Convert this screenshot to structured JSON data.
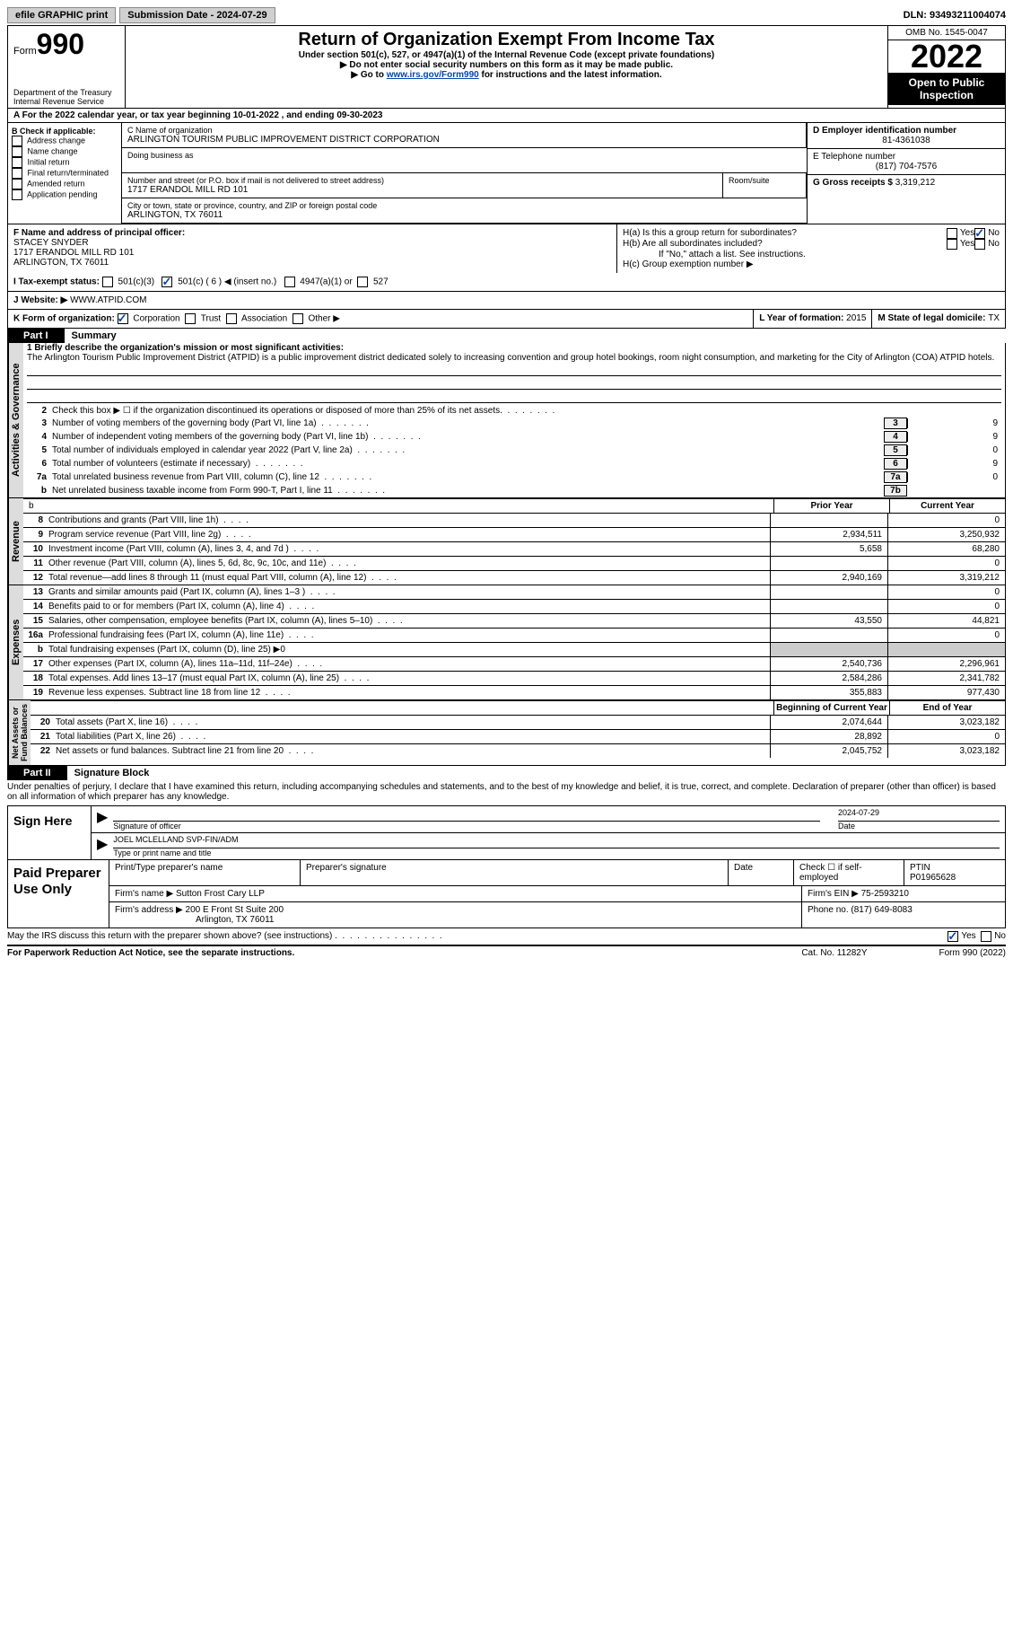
{
  "top": {
    "efile": "efile GRAPHIC print",
    "sub_label": "Submission Date - 2024-07-29",
    "dln": "DLN: 93493211004074"
  },
  "header": {
    "form_word": "Form",
    "form_num": "990",
    "dept": "Department of the Treasury\nInternal Revenue Service",
    "title": "Return of Organization Exempt From Income Tax",
    "sub": "Under section 501(c), 527, or 4947(a)(1) of the Internal Revenue Code (except private foundations)",
    "note1": "▶ Do not enter social security numbers on this form as it may be made public.",
    "note2_pre": "▶ Go to ",
    "note2_link": "www.irs.gov/Form990",
    "note2_post": " for instructions and the latest information.",
    "omb": "OMB No. 1545-0047",
    "year": "2022",
    "open": "Open to Public Inspection"
  },
  "row_a": "A   For the 2022 calendar year, or tax year beginning 10-01-2022     , and ending 09-30-2023",
  "box_b": {
    "head": "B Check if applicable:",
    "items": [
      "Address change",
      "Name change",
      "Initial return",
      "Final return/terminated",
      "Amended return",
      "Application pending"
    ]
  },
  "box_c": {
    "label": "C Name of organization",
    "name": "ARLINGTON TOURISM PUBLIC IMPROVEMENT DISTRICT CORPORATION",
    "dba_label": "Doing business as",
    "addr_label": "Number and street (or P.O. box if mail is not delivered to street address)",
    "room_label": "Room/suite",
    "addr": "1717 ERANDOL MILL RD 101",
    "city_label": "City or town, state or province, country, and ZIP or foreign postal code",
    "city": "ARLINGTON, TX  76011"
  },
  "box_d": {
    "label": "D Employer identification number",
    "val": "81-4361038"
  },
  "box_e": {
    "label": "E Telephone number",
    "val": "(817) 704-7576"
  },
  "box_g": {
    "label": "G Gross receipts $",
    "val": "3,319,212"
  },
  "box_f": {
    "label": "F  Name and address of principal officer:",
    "name": "STACEY SNYDER",
    "addr1": "1717 ERANDOL MILL RD 101",
    "addr2": "ARLINGTON, TX  76011"
  },
  "box_h": {
    "a": "H(a)  Is this a group return for subordinates?",
    "b": "H(b)  Are all subordinates included?",
    "note": "If \"No,\" attach a list. See instructions.",
    "c": "H(c)  Group exemption number ▶",
    "yes": "Yes",
    "no": "No"
  },
  "box_i": {
    "label": "I    Tax-exempt status:",
    "c1": "501(c)(3)",
    "c2": "501(c) ( 6 ) ◀ (insert no.)",
    "c3": "4947(a)(1) or",
    "c4": "527"
  },
  "box_j": {
    "label": "J   Website: ▶",
    "val": "WWW.ATPID.COM"
  },
  "box_k": {
    "label": "K Form of organization:",
    "c1": "Corporation",
    "c2": "Trust",
    "c3": "Association",
    "c4": "Other ▶"
  },
  "box_l": {
    "label": "L Year of formation: ",
    "val": "2015"
  },
  "box_m": {
    "label": "M State of legal domicile: ",
    "val": "TX"
  },
  "part1": {
    "num": "Part I",
    "title": "Summary"
  },
  "mission": {
    "lead": "1   Briefly describe the organization's mission or most significant activities:",
    "text": "The Arlington Tourism Public Improvement District (ATPID) is a public improvement district dedicated solely to increasing convention and group hotel bookings, room night consumption, and marketing for the City of Arlington (COA) ATPID hotels."
  },
  "lines_gov": [
    {
      "n": "2",
      "t": "Check this box ▶ ☐  if the organization discontinued its operations or disposed of more than 25% of its net assets."
    },
    {
      "n": "3",
      "t": "Number of voting members of the governing body (Part VI, line 1a)",
      "box": "3",
      "v": "9"
    },
    {
      "n": "4",
      "t": "Number of independent voting members of the governing body (Part VI, line 1b)",
      "box": "4",
      "v": "9"
    },
    {
      "n": "5",
      "t": "Total number of individuals employed in calendar year 2022 (Part V, line 2a)",
      "box": "5",
      "v": "0"
    },
    {
      "n": "6",
      "t": "Total number of volunteers (estimate if necessary)",
      "box": "6",
      "v": "9"
    },
    {
      "n": "7a",
      "t": "Total unrelated business revenue from Part VIII, column (C), line 12",
      "box": "7a",
      "v": "0"
    },
    {
      "n": "b",
      "t": "Net unrelated business taxable income from Form 990-T, Part I, line 11",
      "box": "7b",
      "v": ""
    }
  ],
  "cols": {
    "prior": "Prior Year",
    "current": "Current Year",
    "boy": "Beginning of Current Year",
    "eoy": "End of Year"
  },
  "rev": [
    {
      "n": "8",
      "t": "Contributions and grants (Part VIII, line 1h)",
      "p": "",
      "c": "0"
    },
    {
      "n": "9",
      "t": "Program service revenue (Part VIII, line 2g)",
      "p": "2,934,511",
      "c": "3,250,932"
    },
    {
      "n": "10",
      "t": "Investment income (Part VIII, column (A), lines 3, 4, and 7d )",
      "p": "5,658",
      "c": "68,280"
    },
    {
      "n": "11",
      "t": "Other revenue (Part VIII, column (A), lines 5, 6d, 8c, 9c, 10c, and 11e)",
      "p": "",
      "c": "0"
    },
    {
      "n": "12",
      "t": "Total revenue—add lines 8 through 11 (must equal Part VIII, column (A), line 12)",
      "p": "2,940,169",
      "c": "3,319,212"
    }
  ],
  "exp": [
    {
      "n": "13",
      "t": "Grants and similar amounts paid (Part IX, column (A), lines 1–3 )",
      "p": "",
      "c": "0"
    },
    {
      "n": "14",
      "t": "Benefits paid to or for members (Part IX, column (A), line 4)",
      "p": "",
      "c": "0"
    },
    {
      "n": "15",
      "t": "Salaries, other compensation, employee benefits (Part IX, column (A), lines 5–10)",
      "p": "43,550",
      "c": "44,821"
    },
    {
      "n": "16a",
      "t": "Professional fundraising fees (Part IX, column (A), line 11e)",
      "p": "",
      "c": "0"
    },
    {
      "n": "b",
      "t": "Total fundraising expenses (Part IX, column (D), line 25) ▶0",
      "gray": true
    },
    {
      "n": "17",
      "t": "Other expenses (Part IX, column (A), lines 11a–11d, 11f–24e)",
      "p": "2,540,736",
      "c": "2,296,961"
    },
    {
      "n": "18",
      "t": "Total expenses. Add lines 13–17 (must equal Part IX, column (A), line 25)",
      "p": "2,584,286",
      "c": "2,341,782"
    },
    {
      "n": "19",
      "t": "Revenue less expenses. Subtract line 18 from line 12",
      "p": "355,883",
      "c": "977,430"
    }
  ],
  "na": [
    {
      "n": "20",
      "t": "Total assets (Part X, line 16)",
      "p": "2,074,644",
      "c": "3,023,182"
    },
    {
      "n": "21",
      "t": "Total liabilities (Part X, line 26)",
      "p": "28,892",
      "c": "0"
    },
    {
      "n": "22",
      "t": "Net assets or fund balances. Subtract line 21 from line 20",
      "p": "2,045,752",
      "c": "3,023,182"
    }
  ],
  "vtabs": {
    "gov": "Activities & Governance",
    "rev": "Revenue",
    "exp": "Expenses",
    "na": "Net Assets or\nFund Balances"
  },
  "part2": {
    "num": "Part II",
    "title": "Signature Block"
  },
  "perjury": "Under penalties of perjury, I declare that I have examined this return, including accompanying schedules and statements, and to the best of my knowledge and belief, it is true, correct, and complete. Declaration of preparer (other than officer) is based on all information of which preparer has any knowledge.",
  "sign": {
    "here": "Sign Here",
    "sig_label": "Signature of officer",
    "date": "2024-07-29",
    "date_label": "Date",
    "name": "JOEL MCLELLAND  SVP-FIN/ADM",
    "name_label": "Type or print name and title"
  },
  "paid": {
    "title": "Paid Preparer Use Only",
    "h1": "Print/Type preparer's name",
    "h2": "Preparer's signature",
    "h3": "Date",
    "h4": "Check ☐ if self-employed",
    "h5": "PTIN",
    "ptin": "P01965628",
    "firm_label": "Firm's name    ▶",
    "firm": "Sutton Frost Cary LLP",
    "ein_label": "Firm's EIN ▶",
    "ein": "75-2593210",
    "addr_label": "Firm's address ▶",
    "addr1": "200 E Front St Suite 200",
    "addr2": "Arlington, TX  76011",
    "phone_label": "Phone no.",
    "phone": "(817) 649-8083"
  },
  "discuss": {
    "t": "May the IRS discuss this return with the preparer shown above? (see instructions)",
    "yes": "Yes",
    "no": "No"
  },
  "footer": {
    "l": "For Paperwork Reduction Act Notice, see the separate instructions.",
    "m": "Cat. No. 11282Y",
    "r": "Form 990 (2022)"
  }
}
